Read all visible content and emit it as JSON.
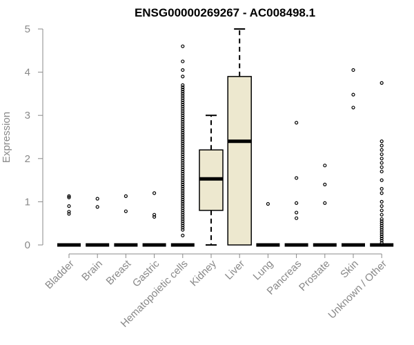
{
  "chart_data": {
    "type": "box",
    "title": "ENSG00000269267 - AC008498.1",
    "xlabel": "",
    "ylabel": "Expression",
    "ylim": [
      0,
      5
    ],
    "yticks": [
      0,
      1,
      2,
      3,
      4,
      5
    ],
    "box_fill": "#ede8cf",
    "categories": [
      "Bladder",
      "Brain",
      "Breast",
      "Gastric",
      "Hematopoietic cells",
      "Kidney",
      "Liver",
      "Lung",
      "Pancreas",
      "Prostate",
      "Skin",
      "Unknown / Other"
    ],
    "boxes": [
      {
        "q1": 0,
        "median": 0,
        "q3": 0,
        "whisker_low": 0,
        "whisker_high": 0,
        "outliers": [
          0.72,
          0.77,
          0.9,
          1.1,
          1.13
        ]
      },
      {
        "q1": 0,
        "median": 0,
        "q3": 0,
        "whisker_low": 0,
        "whisker_high": 0,
        "outliers": [
          0.88,
          1.07
        ]
      },
      {
        "q1": 0,
        "median": 0,
        "q3": 0,
        "whisker_low": 0,
        "whisker_high": 0,
        "outliers": [
          0.78,
          1.13
        ]
      },
      {
        "q1": 0,
        "median": 0,
        "q3": 0,
        "whisker_low": 0,
        "whisker_high": 0,
        "outliers": [
          0.65,
          0.7,
          1.2
        ]
      },
      {
        "q1": 0,
        "median": 0,
        "q3": 0,
        "whisker_low": 0,
        "whisker_high": 0,
        "outliers": [
          0.22,
          0.35,
          0.4,
          0.45,
          0.5,
          0.55,
          0.6,
          0.65,
          0.7,
          0.75,
          0.8,
          0.85,
          0.9,
          0.95,
          1.0,
          1.05,
          1.1,
          1.15,
          1.2,
          1.25,
          1.3,
          1.35,
          1.4,
          1.45,
          1.5,
          1.55,
          1.6,
          1.65,
          1.7,
          1.75,
          1.8,
          1.85,
          1.9,
          1.95,
          2.0,
          2.05,
          2.1,
          2.15,
          2.2,
          2.25,
          2.3,
          2.35,
          2.4,
          2.45,
          2.5,
          2.55,
          2.6,
          2.65,
          2.7,
          2.75,
          2.8,
          2.85,
          2.9,
          2.95,
          3.0,
          3.05,
          3.1,
          3.15,
          3.2,
          3.25,
          3.3,
          3.35,
          3.4,
          3.45,
          3.5,
          3.55,
          3.6,
          3.65,
          3.7,
          3.9,
          4.05,
          4.25,
          4.6
        ]
      },
      {
        "q1": 0.8,
        "median": 1.53,
        "q3": 2.2,
        "whisker_low": 0,
        "whisker_high": 3.0,
        "outliers": []
      },
      {
        "q1": 0,
        "median": 2.4,
        "q3": 3.9,
        "whisker_low": 0,
        "whisker_high": 5.0,
        "outliers": []
      },
      {
        "q1": 0,
        "median": 0,
        "q3": 0,
        "whisker_low": 0,
        "whisker_high": 0,
        "outliers": [
          0.95
        ]
      },
      {
        "q1": 0,
        "median": 0,
        "q3": 0,
        "whisker_low": 0,
        "whisker_high": 0,
        "outliers": [
          0.62,
          0.75,
          0.97,
          1.55,
          2.83
        ]
      },
      {
        "q1": 0,
        "median": 0,
        "q3": 0,
        "whisker_low": 0,
        "whisker_high": 0,
        "outliers": [
          0.97,
          1.4,
          1.84
        ]
      },
      {
        "q1": 0,
        "median": 0,
        "q3": 0,
        "whisker_low": 0,
        "whisker_high": 0,
        "outliers": [
          3.18,
          3.48,
          4.05
        ]
      },
      {
        "q1": 0,
        "median": 0,
        "q3": 0,
        "whisker_low": 0,
        "whisker_high": 0,
        "outliers": [
          0.05,
          0.1,
          0.15,
          0.2,
          0.25,
          0.3,
          0.35,
          0.4,
          0.45,
          0.5,
          0.55,
          0.6,
          0.7,
          0.8,
          0.9,
          1.0,
          1.2,
          1.3,
          1.5,
          1.7,
          1.8,
          1.9,
          2.0,
          2.1,
          2.2,
          2.3,
          2.4,
          3.75
        ]
      }
    ],
    "grid": false,
    "legend": "none"
  }
}
